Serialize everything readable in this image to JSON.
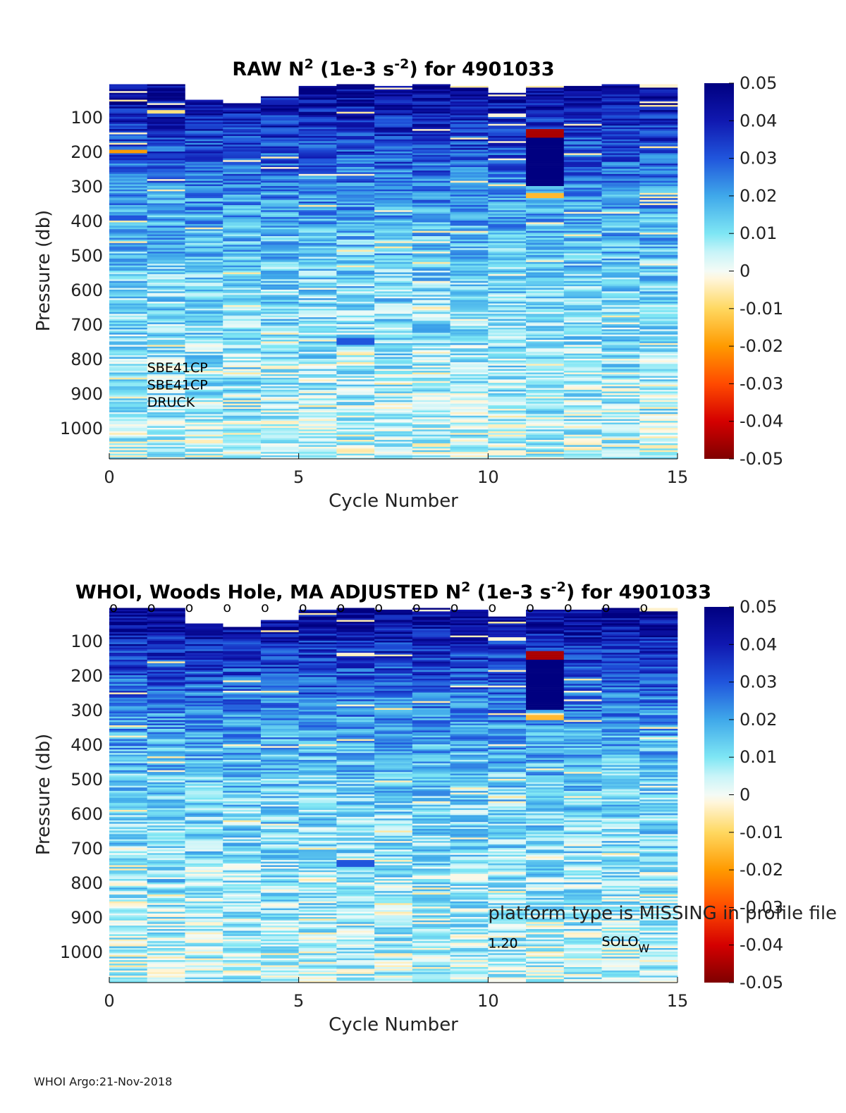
{
  "chart_data": [
    {
      "type": "heatmap",
      "title": "RAW N² (1e-3 s⁻²) for 4901033",
      "title_parts": {
        "prefix": "RAW N",
        "sup1": "2",
        "middle": " (1e-3 s",
        "sup2": "-2",
        "suffix": ") for 4901033"
      },
      "xlabel": "Cycle Number",
      "ylabel": "Pressure (db)",
      "xlim": [
        0,
        15
      ],
      "ylim": [
        1090,
        0
      ],
      "xticks": [
        0,
        5,
        10,
        15
      ],
      "xtick_labels": [
        "0",
        "5",
        "10",
        "15"
      ],
      "yticks": [
        100,
        200,
        300,
        400,
        500,
        600,
        700,
        800,
        900,
        1000
      ],
      "ytick_labels": [
        "100",
        "200",
        "300",
        "400",
        "500",
        "600",
        "700",
        "800",
        "900",
        "1000"
      ],
      "colorbar": {
        "min": -0.05,
        "max": 0.05,
        "ticks": [
          0.05,
          0.04,
          0.03,
          0.02,
          0.01,
          0,
          -0.01,
          -0.02,
          -0.03,
          -0.04,
          -0.05
        ],
        "tick_labels": [
          "0.05",
          "0.04",
          "0.03",
          "0.02",
          "0.01",
          "0",
          "-0.01",
          "-0.02",
          "-0.03",
          "-0.04",
          "-0.05"
        ]
      },
      "cycles": [
        1,
        2,
        3,
        4,
        5,
        6,
        7,
        8,
        9,
        10,
        11,
        12,
        13,
        14,
        15
      ],
      "profile_top_pressure": [
        5,
        5,
        50,
        60,
        40,
        10,
        5,
        10,
        5,
        10,
        30,
        10,
        10,
        5,
        5
      ],
      "bin_size_db": 10,
      "value_profile": {
        "pressure": [
          0,
          100,
          200,
          300,
          400,
          500,
          600,
          700,
          800,
          900,
          1000,
          1090
        ],
        "n2": [
          0.048,
          0.038,
          0.031,
          0.024,
          0.019,
          0.015,
          0.012,
          0.011,
          0.009,
          0.008,
          0.006,
          0.005
        ]
      },
      "anomalies": [
        {
          "cycle": 12,
          "p_from": 135,
          "p_to": 160,
          "n2": -0.045
        },
        {
          "cycle": 12,
          "p_from": 160,
          "p_to": 300,
          "n2": 0.05
        },
        {
          "cycle": 12,
          "p_from": 320,
          "p_to": 335,
          "n2": -0.015
        },
        {
          "cycle": 15,
          "p_from": 0,
          "p_to": 12,
          "n2": -0.003
        },
        {
          "cycle": 7,
          "p_from": 740,
          "p_to": 760,
          "n2": 0.03
        },
        {
          "cycle": 1,
          "p_from": 195,
          "p_to": 205,
          "n2": -0.02
        },
        {
          "cycle": 2,
          "p_from": 80,
          "p_to": 90,
          "n2": -0.008
        },
        {
          "cycle": 11,
          "p_from": 90,
          "p_to": 96,
          "n2": -0.002
        }
      ],
      "annotations": [
        "SBE41CP",
        "SBE41CP",
        "DRUCK"
      ],
      "annotation_pressure": [
        825,
        875,
        925
      ]
    },
    {
      "type": "heatmap",
      "title": "WHOI, Woods Hole, MA  ADJUSTED N² (1e-3 s⁻²) for 4901033",
      "title_parts": {
        "prefix": "WHOI, Woods Hole, MA  ADJUSTED N",
        "sup1": "2",
        "middle": " (1e-3 s",
        "sup2": "-2",
        "suffix": ") for 4901033"
      },
      "xlabel": "Cycle Number",
      "ylabel": "Pressure (db)",
      "xlim": [
        0,
        15
      ],
      "ylim": [
        1090,
        0
      ],
      "xticks": [
        0,
        5,
        10,
        15
      ],
      "xtick_labels": [
        "0",
        "5",
        "10",
        "15"
      ],
      "yticks": [
        100,
        200,
        300,
        400,
        500,
        600,
        700,
        800,
        900,
        1000
      ],
      "ytick_labels": [
        "100",
        "200",
        "300",
        "400",
        "500",
        "600",
        "700",
        "800",
        "900",
        "1000"
      ],
      "colorbar": {
        "min": -0.05,
        "max": 0.05,
        "ticks": [
          0.05,
          0.04,
          0.03,
          0.02,
          0.01,
          0,
          -0.01,
          -0.02,
          -0.03,
          -0.04,
          -0.05
        ],
        "tick_labels": [
          "0.05",
          "0.04",
          "0.03",
          "0.02",
          "0.01",
          "0",
          "-0.01",
          "-0.02",
          "-0.03",
          "-0.04",
          "-0.05"
        ]
      },
      "cycles": [
        1,
        2,
        3,
        4,
        5,
        6,
        7,
        8,
        9,
        10,
        11,
        12,
        13,
        14,
        15
      ],
      "profile_top_pressure": [
        5,
        5,
        50,
        60,
        40,
        10,
        5,
        10,
        5,
        10,
        30,
        10,
        10,
        5,
        5
      ],
      "bin_size_db": 10,
      "value_profile": {
        "pressure": [
          0,
          100,
          200,
          300,
          400,
          500,
          600,
          700,
          800,
          900,
          1000,
          1090
        ],
        "n2": [
          0.048,
          0.038,
          0.031,
          0.024,
          0.019,
          0.015,
          0.012,
          0.011,
          0.009,
          0.008,
          0.006,
          0.005
        ]
      },
      "anomalies": [
        {
          "cycle": 12,
          "p_from": 130,
          "p_to": 155,
          "n2": -0.045
        },
        {
          "cycle": 12,
          "p_from": 155,
          "p_to": 300,
          "n2": 0.05
        },
        {
          "cycle": 12,
          "p_from": 315,
          "p_to": 330,
          "n2": -0.015
        },
        {
          "cycle": 15,
          "p_from": 0,
          "p_to": 12,
          "n2": -0.003
        },
        {
          "cycle": 7,
          "p_from": 735,
          "p_to": 755,
          "n2": 0.03
        },
        {
          "cycle": 2,
          "p_from": 790,
          "p_to": 800,
          "n2": 0.022
        },
        {
          "cycle": 11,
          "p_from": 90,
          "p_to": 96,
          "n2": -0.002
        }
      ],
      "qc_flags": [
        "o",
        "o",
        "o",
        "o",
        "o",
        "o",
        "o",
        "o",
        "o",
        "o",
        "o",
        "o",
        "o",
        "o",
        "o"
      ],
      "annotations": {
        "platform": "platform type is MISSING in profile file",
        "version": "1.20",
        "float_type": "SOLO",
        "float_type_sub": "W"
      },
      "annotation_pressure": {
        "platform": 890,
        "version": 975,
        "float_type": 970
      }
    }
  ],
  "footer": "WHOI Argo:21-Nov-2018"
}
